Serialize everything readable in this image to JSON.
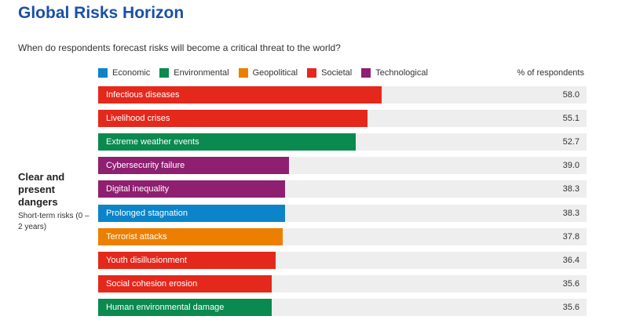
{
  "header": {
    "title": "Global Risks Horizon",
    "subtitle": "When do respondents forecast risks will become a critical threat to the world?"
  },
  "legend": [
    {
      "label": "Economic",
      "color": "#0b84c9"
    },
    {
      "label": "Environmental",
      "color": "#0a8a4e"
    },
    {
      "label": "Geopolitical",
      "color": "#ec7f00"
    },
    {
      "label": "Societal",
      "color": "#e5281c"
    },
    {
      "label": "Technological",
      "color": "#8e1f71"
    }
  ],
  "group": {
    "title": "Clear and present dangers",
    "subtitle": "Short-term risks (0 – 2 years)"
  },
  "chart_data": {
    "type": "bar",
    "orientation": "horizontal",
    "value_header": "% of respondents",
    "xlim": [
      0,
      100
    ],
    "categories": [
      "Infectious diseases",
      "Livelihood crises",
      "Extreme weather events",
      "Cybersecurity failure",
      "Digital inequality",
      "Prolonged stagnation",
      "Terrorist attacks",
      "Youth disillusionment",
      "Social cohesion erosion",
      "Human environmental damage"
    ],
    "values": [
      58.0,
      55.1,
      52.7,
      39.0,
      38.3,
      38.3,
      37.8,
      36.4,
      35.6,
      35.6
    ],
    "value_labels": [
      "58.0",
      "55.1",
      "52.7",
      "39.0",
      "38.3",
      "38.3",
      "37.8",
      "36.4",
      "35.6",
      "35.6"
    ],
    "risk_categories": [
      "Societal",
      "Societal",
      "Environmental",
      "Technological",
      "Technological",
      "Economic",
      "Geopolitical",
      "Societal",
      "Societal",
      "Environmental"
    ]
  }
}
